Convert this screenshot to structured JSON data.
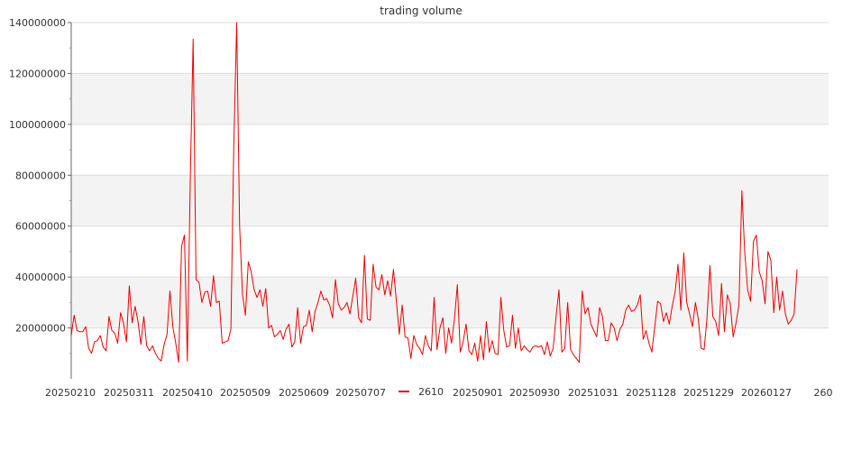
{
  "chart_data": {
    "type": "line",
    "title": "trading volume",
    "xlabel": "",
    "ylabel": "",
    "ylim": [
      0,
      140000000
    ],
    "yticks": [
      "20000000",
      "40000000",
      "60000000",
      "80000000",
      "100000000",
      "120000000",
      "140000000"
    ],
    "xtick_labels": [
      "20250210",
      "20250311",
      "20250410",
      "20250509",
      "20250609",
      "20250707",
      "20250901",
      "20250930",
      "20251031",
      "20251128",
      "20251229",
      "20260127",
      "260"
    ],
    "legend": {
      "position": "bottom-center"
    },
    "grid": {
      "horizontal": true,
      "alternating_bands": true
    },
    "series": [
      {
        "name": "2610",
        "color": "#ee0000",
        "values": [
          17000000,
          25000000,
          19000000,
          18500000,
          18500000,
          20500000,
          12000000,
          10000000,
          14500000,
          15000000,
          17000000,
          12500000,
          11000000,
          24500000,
          19000000,
          18000000,
          14000000,
          26000000,
          22000000,
          14500000,
          36500000,
          22000000,
          28500000,
          22500000,
          13500000,
          24500000,
          13000000,
          11000000,
          13000000,
          10000000,
          8000000,
          7000000,
          13500000,
          17500000,
          34500000,
          20500000,
          14000000,
          6500000,
          52000000,
          56500000,
          7000000,
          78000000,
          133500000,
          39000000,
          38000000,
          30000000,
          34000000,
          34500000,
          28500000,
          40500000,
          30000000,
          30500000,
          14000000,
          14500000,
          15000000,
          19500000,
          92000000,
          140000000,
          60000000,
          33000000,
          25000000,
          46000000,
          42000000,
          35000000,
          32000000,
          35000000,
          28500000,
          35500000,
          20000000,
          21000000,
          16500000,
          17500000,
          19000000,
          15500000,
          19500000,
          21500000,
          12500000,
          14500000,
          28000000,
          14000000,
          20500000,
          21000000,
          27000000,
          18500000,
          26500000,
          30000000,
          34500000,
          31000000,
          31500000,
          29000000,
          24000000,
          39000000,
          29500000,
          27000000,
          28000000,
          30000000,
          25500000,
          32500000,
          39500000,
          24000000,
          22000000,
          48500000,
          23500000,
          23000000,
          45000000,
          36000000,
          35000000,
          41000000,
          33000000,
          38500000,
          32500000,
          43000000,
          30500000,
          17500000,
          29000000,
          16500000,
          16000000,
          8000000,
          17000000,
          13500000,
          12000000,
          9500000,
          17000000,
          13000000,
          11000000,
          32000000,
          11500000,
          20000000,
          24000000,
          10000000,
          20000000,
          14000000,
          23500000,
          37000000,
          10500000,
          14500000,
          21500000,
          11000000,
          9500000,
          14000000,
          7000000,
          17000000,
          7500000,
          22500000,
          10500000,
          15000000,
          10000000,
          9500000,
          32000000,
          19000000,
          12500000,
          13000000,
          25000000,
          12000000,
          20000000,
          11000000,
          13000000,
          11500000,
          10500000,
          12500000,
          13000000,
          12500000,
          13000000,
          9500000,
          14500000,
          9000000,
          12000000,
          24500000,
          35000000,
          10500000,
          12000000,
          30000000,
          11500000,
          9500000,
          8000000,
          6500000,
          34500000,
          25500000,
          28000000,
          21500000,
          19000000,
          16500000,
          28000000,
          24500000,
          15000000,
          15000000,
          22000000,
          20000000,
          15000000,
          19500000,
          21500000,
          27000000,
          29000000,
          26500000,
          27000000,
          29000000,
          33000000,
          15500000,
          19000000,
          14000000,
          10500000,
          20500000,
          30500000,
          29500000,
          22500000,
          26000000,
          21500000,
          28500000,
          34000000,
          45000000,
          27000000,
          49500000,
          30000000,
          25500000,
          20500000,
          30000000,
          23500000,
          12000000,
          11500000,
          24000000,
          44500000,
          24500000,
          22500000,
          17000000,
          37500000,
          18500000,
          33000000,
          29500000,
          16500000,
          22000000,
          29000000,
          74000000,
          49500000,
          35000000,
          30500000,
          54000000,
          56500000,
          42000000,
          38500000,
          29500000,
          50000000,
          46500000,
          26000000,
          40000000,
          27000000,
          34500000,
          25500000,
          21500000,
          23000000,
          25500000,
          43000000
        ]
      }
    ]
  }
}
